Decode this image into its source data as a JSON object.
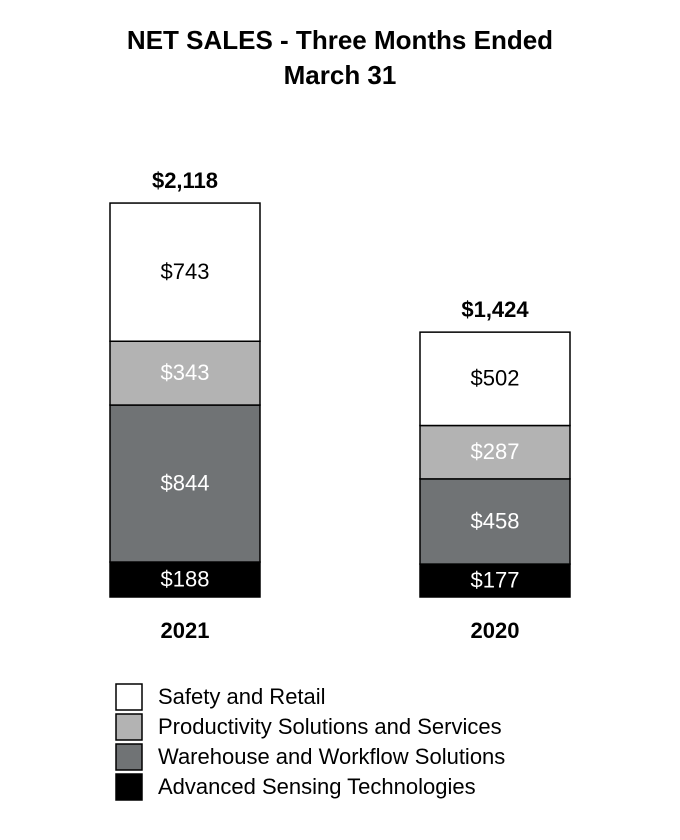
{
  "chart_data": {
    "type": "stacked_bar",
    "title": "NET SALES - Three Months Ended",
    "subtitle": "March 31",
    "categories": [
      "2021",
      "2020"
    ],
    "totals": [
      2118,
      1424
    ],
    "total_labels": [
      "$2,118",
      "$1,424"
    ],
    "series": [
      {
        "name": "Safety and Retail",
        "color": "#ffffff",
        "values": [
          743,
          502
        ],
        "value_labels": [
          "$743",
          "$502"
        ]
      },
      {
        "name": "Productivity Solutions and Services",
        "color": "#b3b3b3",
        "values": [
          343,
          287
        ],
        "value_labels": [
          "$343",
          "$287"
        ]
      },
      {
        "name": "Warehouse and Workflow Solutions",
        "color": "#707375",
        "values": [
          844,
          458
        ],
        "value_labels": [
          "$844",
          "$458"
        ]
      },
      {
        "name": "Advanced Sensing Technologies",
        "color": "#000000",
        "values": [
          188,
          177
        ],
        "value_labels": [
          "$188",
          "$177"
        ]
      }
    ]
  }
}
